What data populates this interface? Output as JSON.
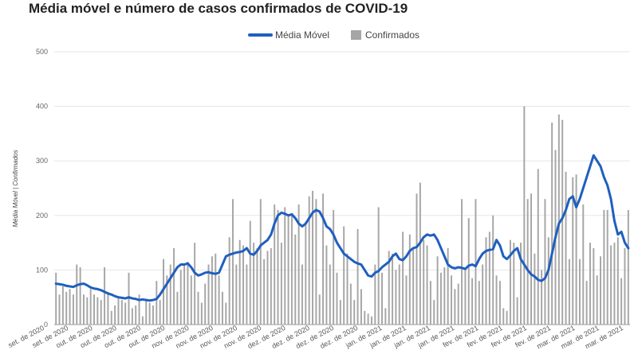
{
  "chart_data": {
    "type": "bar",
    "title": "Média móvel e número de casos confirmados de COVID-19",
    "xlabel": "",
    "ylabel": "Média Móvel | Confirmados",
    "ylim": [
      0,
      500
    ],
    "yticks": [
      0,
      100,
      200,
      300,
      400,
      500
    ],
    "grid": true,
    "legend_position": "top",
    "colors": {
      "line": "#1f5fbf",
      "bar": "#a6a6a6",
      "grid": "#e6e6e6",
      "axis": "#999999"
    },
    "x_tick_labels": [
      "set. de 2020",
      "set. de 2020",
      "out. de 2020",
      "out. de 2020",
      "out. de 2020",
      "out. de 2020",
      "nov. de 2020",
      "nov. de 2020",
      "nov. de 2020",
      "nov. de 2020",
      "dez. de 2020",
      "dez. de 2020",
      "dez. de 2020",
      "dez. de 2020",
      "jan. de 2021",
      "jan. de 2021",
      "jan. de 2021",
      "jan. de 2021",
      "fev. de 2021",
      "fev. de 2021",
      "fev. de 2021",
      "fev. de 2021",
      "mar. de 2021",
      "mar. de 2021",
      "mar. de 2021"
    ],
    "series": [
      {
        "name": "Média Móvel",
        "type": "line",
        "values": [
          75,
          74,
          73,
          71,
          70,
          69,
          72,
          74,
          75,
          72,
          68,
          66,
          65,
          63,
          60,
          57,
          55,
          52,
          50,
          49,
          48,
          50,
          48,
          47,
          45,
          46,
          45,
          44,
          45,
          47,
          55,
          65,
          75,
          85,
          95,
          105,
          110,
          110,
          112,
          105,
          95,
          90,
          92,
          95,
          96,
          94,
          93,
          95,
          110,
          125,
          128,
          130,
          132,
          133,
          135,
          140,
          130,
          128,
          135,
          145,
          150,
          155,
          165,
          185,
          200,
          205,
          203,
          200,
          202,
          195,
          185,
          180,
          185,
          195,
          205,
          210,
          207,
          195,
          180,
          175,
          165,
          150,
          140,
          130,
          125,
          120,
          115,
          112,
          110,
          100,
          90,
          88,
          95,
          98,
          105,
          110,
          115,
          125,
          130,
          120,
          118,
          125,
          135,
          140,
          142,
          150,
          160,
          165,
          163,
          165,
          155,
          140,
          125,
          110,
          105,
          103,
          105,
          104,
          102,
          108,
          110,
          107,
          120,
          130,
          135,
          137,
          138,
          155,
          145,
          125,
          120,
          127,
          135,
          140,
          120,
          110,
          100,
          92,
          88,
          82,
          80,
          85,
          100,
          130,
          160,
          185,
          195,
          210,
          230,
          235,
          215,
          230,
          250,
          270,
          290,
          310,
          300,
          290,
          270,
          255,
          230,
          190,
          165,
          170,
          150,
          140
        ]
      },
      {
        "name": "Confirmados",
        "type": "bar",
        "values": [
          95,
          55,
          70,
          60,
          65,
          55,
          110,
          105,
          55,
          50,
          65,
          55,
          50,
          45,
          105,
          60,
          25,
          35,
          50,
          45,
          40,
          95,
          30,
          35,
          55,
          15,
          45,
          40,
          35,
          80,
          45,
          120,
          90,
          110,
          140,
          60,
          100,
          110,
          115,
          90,
          150,
          60,
          40,
          75,
          110,
          125,
          130,
          90,
          60,
          40,
          160,
          230,
          110,
          155,
          145,
          110,
          190,
          150,
          140,
          230,
          120,
          135,
          140,
          220,
          210,
          150,
          215,
          200,
          200,
          165,
          220,
          110,
          185,
          235,
          245,
          230,
          55,
          240,
          145,
          110,
          210,
          95,
          45,
          180,
          130,
          75,
          45,
          175,
          65,
          25,
          20,
          15,
          110,
          215,
          95,
          30,
          135,
          130,
          100,
          110,
          170,
          90,
          165,
          140,
          240,
          260,
          155,
          145,
          80,
          45,
          125,
          95,
          105,
          140,
          90,
          65,
          75,
          230,
          100,
          195,
          85,
          230,
          80,
          110,
          160,
          170,
          200,
          90,
          80,
          30,
          25,
          155,
          150,
          50,
          150,
          400,
          230,
          240,
          130,
          285,
          100,
          230,
          160,
          370,
          320,
          385,
          375,
          280,
          120,
          270,
          275,
          120,
          220,
          80,
          150,
          140,
          90,
          125,
          210,
          210,
          145,
          150,
          160,
          85,
          140,
          210
        ]
      }
    ]
  }
}
